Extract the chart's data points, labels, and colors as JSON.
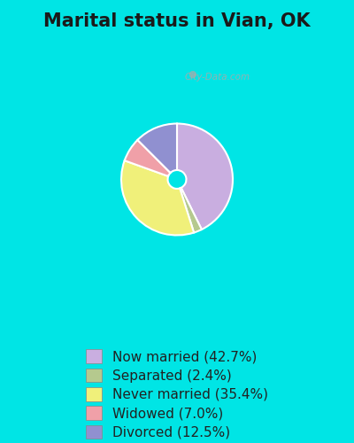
{
  "title": "Marital status in Vian, OK",
  "slices": [
    42.7,
    2.4,
    35.4,
    7.0,
    12.5
  ],
  "labels": [
    "Now married (42.7%)",
    "Separated (2.4%)",
    "Never married (35.4%)",
    "Widowed (7.0%)",
    "Divorced (12.5%)"
  ],
  "colors": [
    "#c9aee0",
    "#b5c98e",
    "#f0f07a",
    "#f0a0a8",
    "#9090d0"
  ],
  "bg_outer": "#00e5e5",
  "bg_chart": "#d8f0e0",
  "title_color": "#1a1a1a",
  "title_fontsize": 15,
  "legend_fontsize": 11,
  "watermark": "City-Data.com"
}
